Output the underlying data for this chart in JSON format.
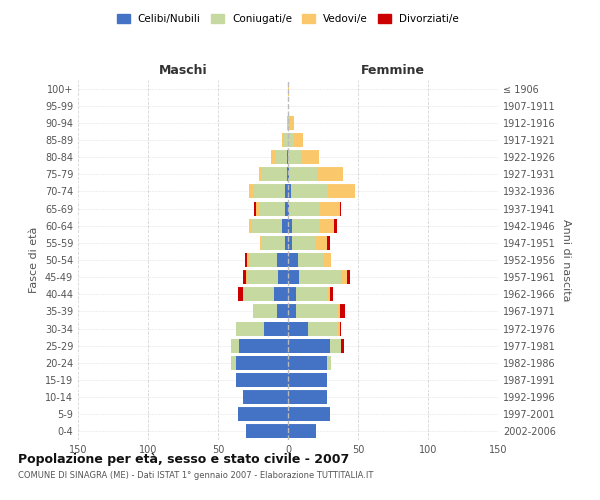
{
  "age_groups": [
    "0-4",
    "5-9",
    "10-14",
    "15-19",
    "20-24",
    "25-29",
    "30-34",
    "35-39",
    "40-44",
    "45-49",
    "50-54",
    "55-59",
    "60-64",
    "65-69",
    "70-74",
    "75-79",
    "80-84",
    "85-89",
    "90-94",
    "95-99",
    "100+"
  ],
  "birth_years": [
    "2002-2006",
    "1997-2001",
    "1992-1996",
    "1987-1991",
    "1982-1986",
    "1977-1981",
    "1972-1976",
    "1967-1971",
    "1962-1966",
    "1957-1961",
    "1952-1956",
    "1947-1951",
    "1942-1946",
    "1937-1941",
    "1932-1936",
    "1927-1931",
    "1922-1926",
    "1917-1921",
    "1912-1916",
    "1907-1911",
    "≤ 1906"
  ],
  "maschi": {
    "celibe": [
      30,
      36,
      32,
      37,
      37,
      35,
      17,
      8,
      10,
      7,
      8,
      2,
      4,
      2,
      2,
      1,
      1,
      0,
      0,
      0,
      0
    ],
    "coniugato": [
      0,
      0,
      0,
      0,
      3,
      6,
      20,
      16,
      22,
      22,
      20,
      17,
      22,
      19,
      22,
      18,
      8,
      3,
      1,
      0,
      0
    ],
    "vedovo": [
      0,
      0,
      0,
      0,
      1,
      0,
      0,
      1,
      0,
      1,
      1,
      1,
      2,
      2,
      4,
      2,
      3,
      1,
      0,
      0,
      0
    ],
    "divorziato": [
      0,
      0,
      0,
      0,
      0,
      0,
      0,
      0,
      4,
      2,
      2,
      0,
      0,
      1,
      0,
      0,
      0,
      0,
      0,
      0,
      0
    ]
  },
  "femmine": {
    "nubile": [
      20,
      30,
      28,
      28,
      28,
      30,
      14,
      6,
      6,
      8,
      7,
      3,
      3,
      1,
      2,
      1,
      0,
      0,
      0,
      0,
      0
    ],
    "coniugata": [
      0,
      0,
      0,
      0,
      3,
      8,
      22,
      30,
      22,
      30,
      19,
      17,
      20,
      21,
      26,
      20,
      9,
      4,
      1,
      0,
      0
    ],
    "vedova": [
      0,
      0,
      0,
      0,
      0,
      0,
      1,
      1,
      2,
      4,
      5,
      8,
      10,
      15,
      20,
      18,
      13,
      7,
      3,
      0,
      1
    ],
    "divorziata": [
      0,
      0,
      0,
      0,
      0,
      2,
      1,
      4,
      2,
      2,
      0,
      2,
      2,
      1,
      0,
      0,
      0,
      0,
      0,
      0,
      0
    ]
  },
  "colors": {
    "celibe": "#4472C4",
    "coniugato": "#C5D9A0",
    "vedovo": "#FAC86B",
    "divorziato": "#CC0000"
  },
  "title": "Popolazione per età, sesso e stato civile - 2007",
  "subtitle": "COMUNE DI SINAGRA (ME) - Dati ISTAT 1° gennaio 2007 - Elaborazione TUTTITALIA.IT",
  "xlabel_left": "Maschi",
  "xlabel_right": "Femmine",
  "ylabel_left": "Fasce di età",
  "ylabel_right": "Anni di nascita",
  "xlim": 150,
  "legend_labels": [
    "Celibi/Nubili",
    "Coniugati/e",
    "Vedovi/e",
    "Divorziati/e"
  ],
  "background_color": "#FFFFFF",
  "grid_color": "#CCCCCC"
}
